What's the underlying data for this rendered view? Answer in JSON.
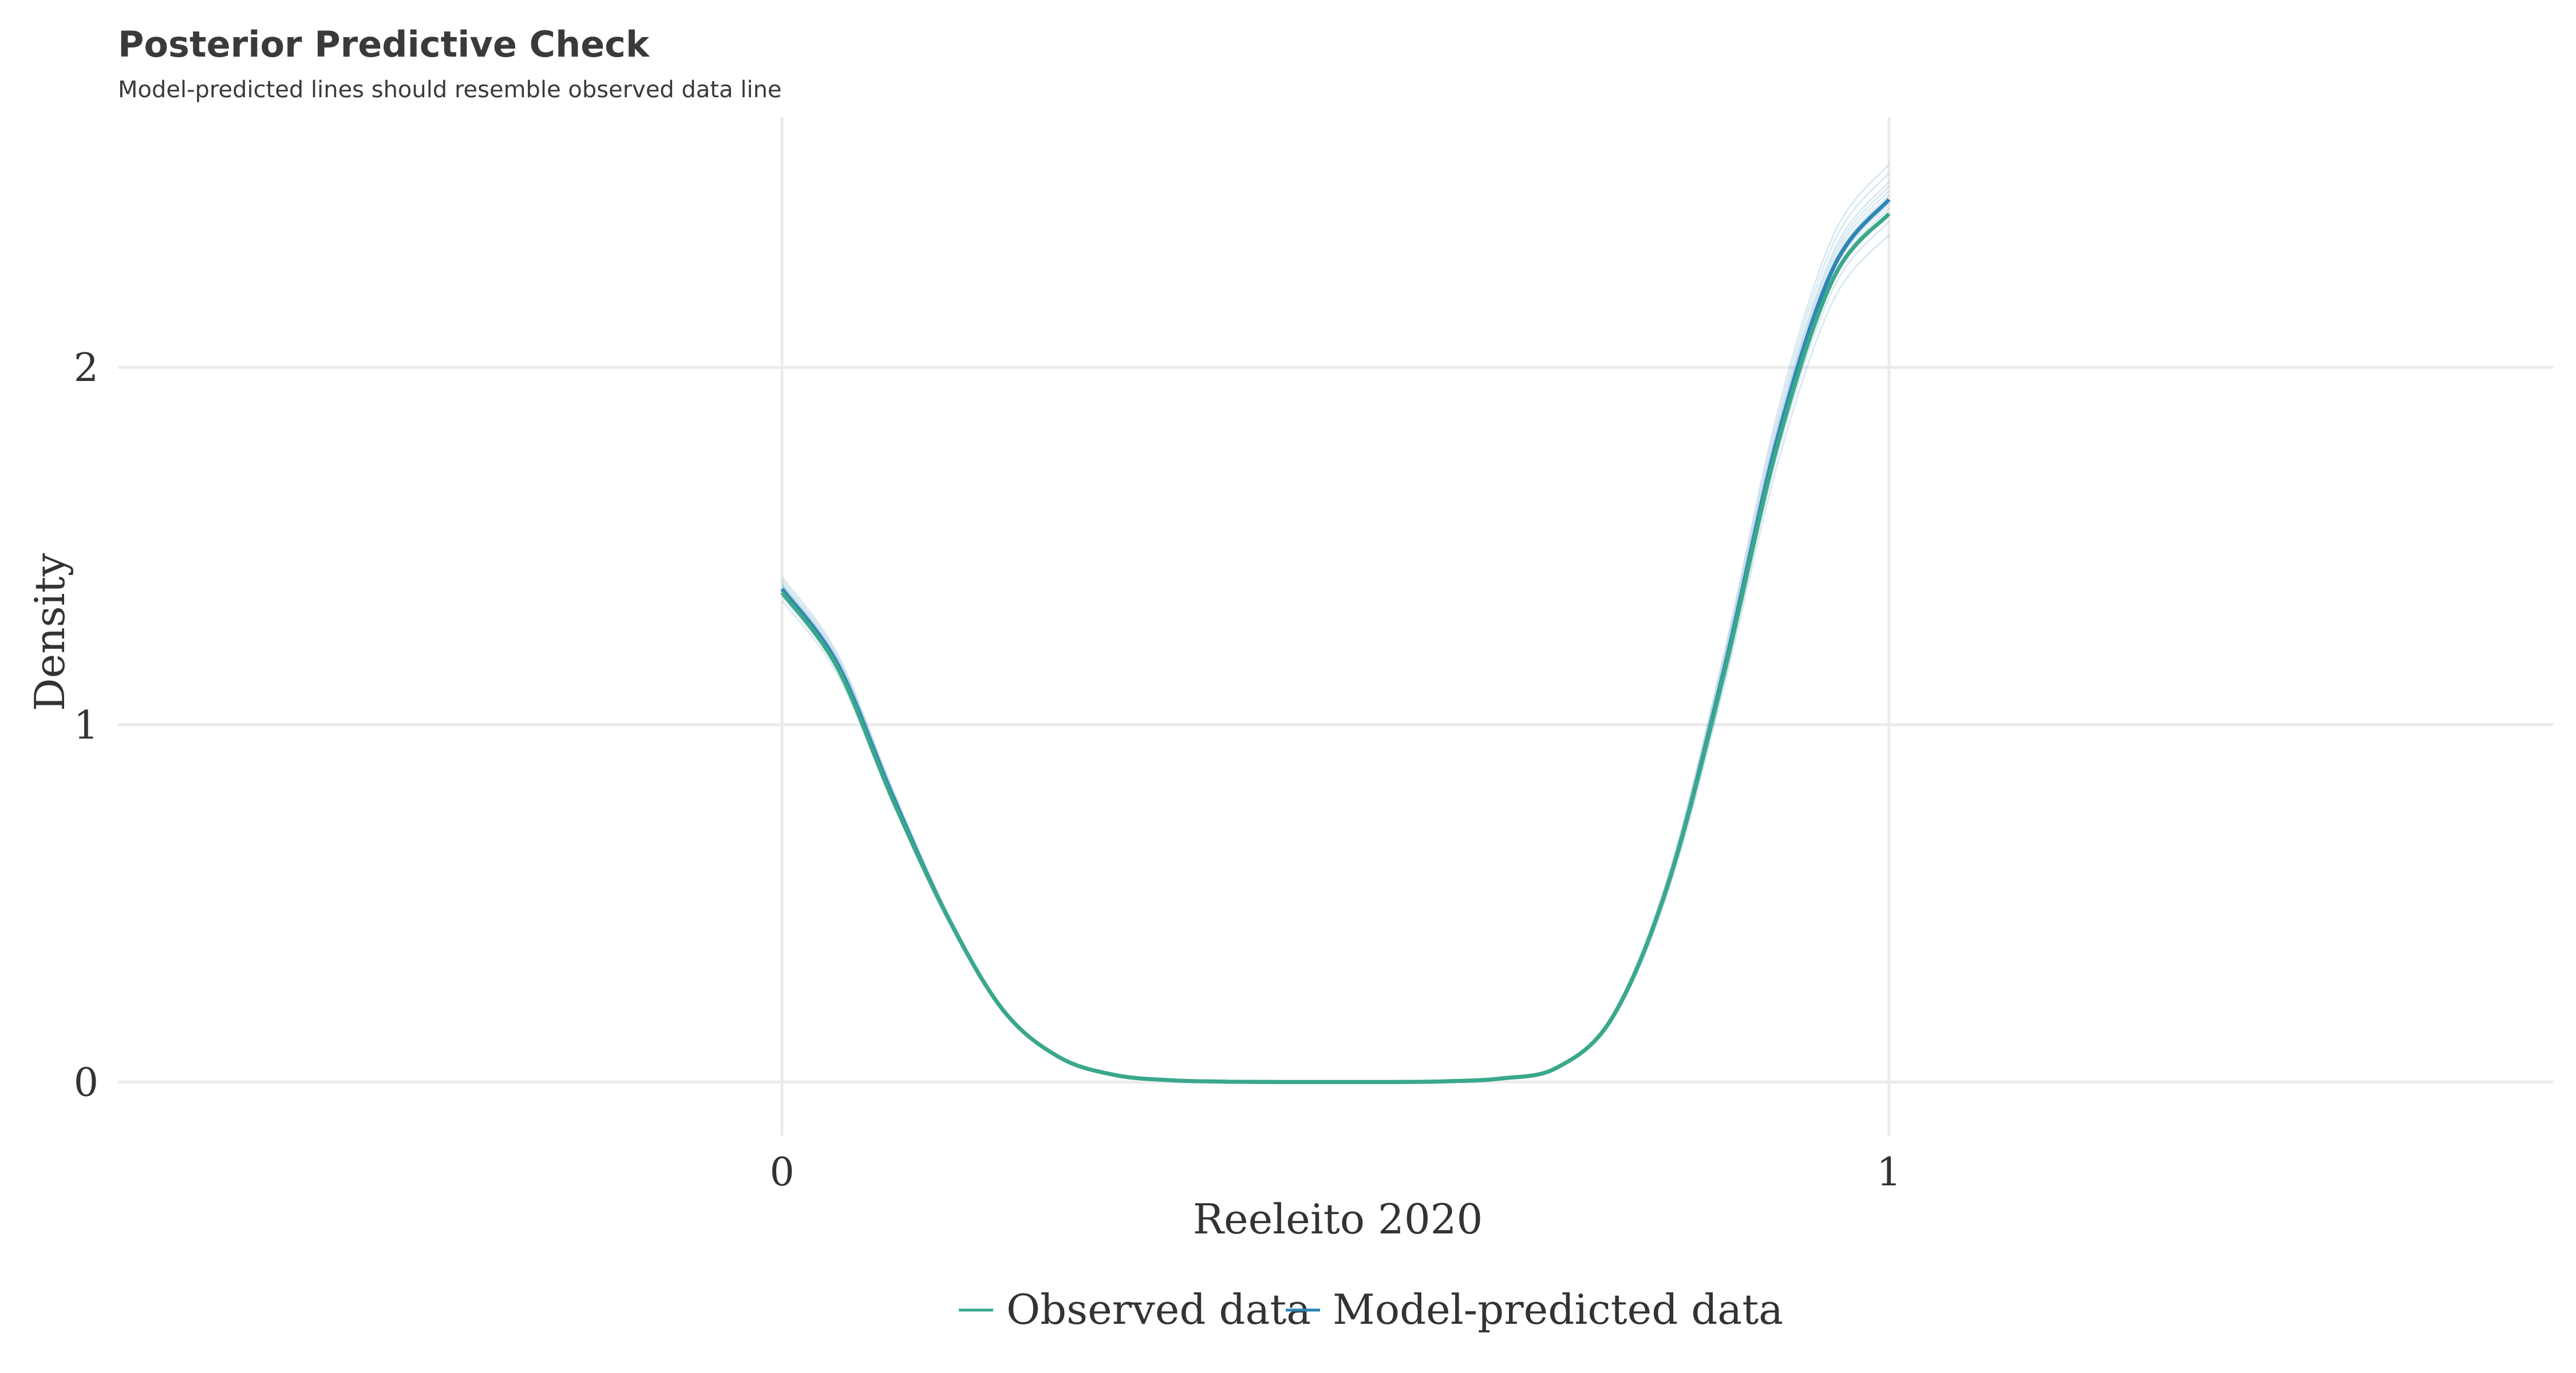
{
  "chart_data": {
    "type": "line",
    "title": "Posterior Predictive Check",
    "subtitle": "Model-predicted lines should resemble observed data line",
    "xlabel": "Reeleito 2020",
    "ylabel": "Density",
    "x_ticks": [
      "0",
      "1"
    ],
    "y_ticks": [
      "0",
      "1",
      "2"
    ],
    "xlim": [
      -0.6,
      1.6
    ],
    "ylim": [
      -0.15,
      2.7
    ],
    "grid": true,
    "legend_position": "bottom",
    "colors": {
      "observed": "#3aa88a",
      "predicted": "#2f86b5",
      "grid": "#ebebeb"
    },
    "series": [
      {
        "name": "Observed data",
        "x": [
          0,
          0.05,
          0.1,
          0.15,
          0.2,
          0.25,
          0.3,
          0.35,
          0.4,
          0.45,
          0.5,
          0.55,
          0.6,
          0.65,
          0.7,
          0.75,
          0.8,
          0.85,
          0.9,
          0.95,
          1.0
        ],
        "y": [
          1.37,
          1.16,
          0.79,
          0.46,
          0.2,
          0.07,
          0.02,
          0.005,
          0.001,
          0.0,
          0.0,
          0.0,
          0.002,
          0.01,
          0.04,
          0.18,
          0.55,
          1.13,
          1.79,
          2.25,
          2.43
        ]
      },
      {
        "name": "Model-predicted data",
        "x": [
          0,
          0.05,
          0.1,
          0.15,
          0.2,
          0.25,
          0.3,
          0.35,
          0.4,
          0.45,
          0.5,
          0.55,
          0.6,
          0.65,
          0.7,
          0.75,
          0.8,
          0.85,
          0.9,
          0.95,
          1.0
        ],
        "y": [
          1.38,
          1.17,
          0.8,
          0.46,
          0.2,
          0.07,
          0.02,
          0.005,
          0.001,
          0.0,
          0.0,
          0.0,
          0.002,
          0.01,
          0.04,
          0.18,
          0.55,
          1.14,
          1.81,
          2.28,
          2.47
        ]
      }
    ]
  }
}
